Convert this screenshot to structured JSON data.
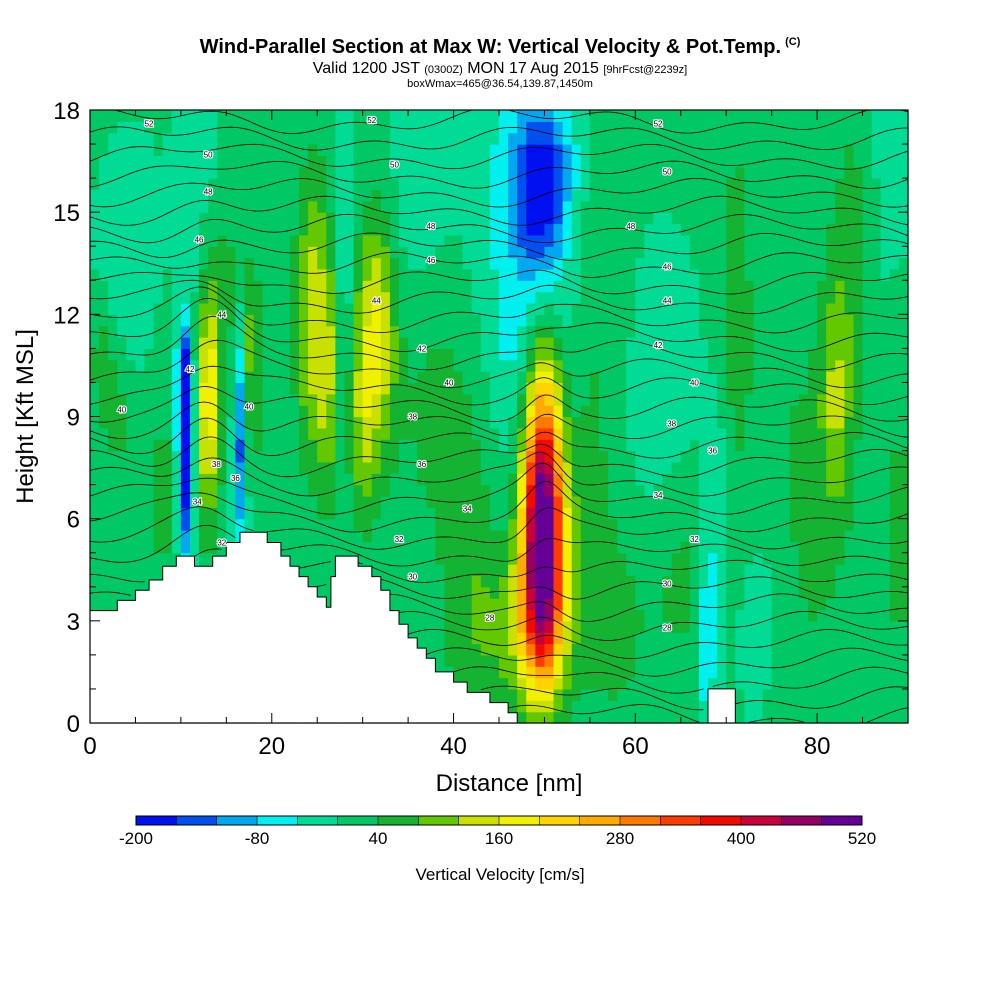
{
  "chart_data": {
    "type": "heatmap",
    "title": "Wind-Parallel Section at Max W: Vertical Velocity & Pot.Temp.",
    "title_mark": "(C)",
    "subtitle_parts": [
      "Valid 1200 JST",
      "(0300Z)",
      "MON 17 Aug 2015",
      "[9hrFcst@2239z]"
    ],
    "subtitle2": "boxWmax=465@36.54,139.87,1450m",
    "xlabel": "Distance [nm]",
    "ylabel": "Height [Kft MSL]",
    "xlim": [
      0,
      90
    ],
    "ylim": [
      0,
      18
    ],
    "xticks": [
      0,
      20,
      40,
      60,
      80
    ],
    "yticks": [
      0,
      3,
      6,
      9,
      12,
      15,
      18
    ],
    "colorbar": {
      "label": "Vertical Velocity [cm/s]",
      "tick_labels": [
        "-200",
        "-80",
        "40",
        "160",
        "280",
        "400",
        "520"
      ],
      "levels": [
        -200,
        -160,
        -120,
        -80,
        -40,
        0,
        40,
        80,
        120,
        160,
        200,
        240,
        280,
        320,
        360,
        400,
        440,
        480,
        520
      ],
      "colors": [
        "#0010f0",
        "#0050f0",
        "#00a8f0",
        "#00f0f0",
        "#00dc96",
        "#00c864",
        "#14b432",
        "#64c800",
        "#c8e100",
        "#f0f000",
        "#ffd200",
        "#ffaa00",
        "#ff7800",
        "#ff3c00",
        "#f00a00",
        "#c8003c",
        "#960064",
        "#640096"
      ]
    },
    "terrain": [
      [
        0,
        3.3
      ],
      [
        3,
        3.3
      ],
      [
        3,
        3.6
      ],
      [
        5,
        3.6
      ],
      [
        5,
        3.9
      ],
      [
        6.5,
        3.9
      ],
      [
        6.5,
        4.2
      ],
      [
        8,
        4.2
      ],
      [
        8,
        4.6
      ],
      [
        9.5,
        4.6
      ],
      [
        9.5,
        4.9
      ],
      [
        11.5,
        4.9
      ],
      [
        11.5,
        4.6
      ],
      [
        13.5,
        4.6
      ],
      [
        13.5,
        4.9
      ],
      [
        15,
        4.9
      ],
      [
        15,
        5.3
      ],
      [
        16.5,
        5.3
      ],
      [
        16.5,
        5.6
      ],
      [
        19.5,
        5.6
      ],
      [
        19.5,
        5.3
      ],
      [
        21,
        5.3
      ],
      [
        21,
        4.9
      ],
      [
        22,
        4.9
      ],
      [
        22,
        4.6
      ],
      [
        23,
        4.6
      ],
      [
        23,
        4.3
      ],
      [
        24,
        4.3
      ],
      [
        24,
        4.0
      ],
      [
        25,
        4.0
      ],
      [
        25,
        3.7
      ],
      [
        26,
        3.7
      ],
      [
        26,
        3.4
      ],
      [
        26.5,
        3.4
      ],
      [
        26.5,
        4.3
      ],
      [
        27,
        4.3
      ],
      [
        27,
        4.9
      ],
      [
        29.5,
        4.9
      ],
      [
        29.5,
        4.6
      ],
      [
        31,
        4.6
      ],
      [
        31,
        4.3
      ],
      [
        32,
        4.3
      ],
      [
        32,
        3.9
      ],
      [
        33,
        3.9
      ],
      [
        33,
        3.3
      ],
      [
        34,
        3.3
      ],
      [
        34,
        2.9
      ],
      [
        35,
        2.9
      ],
      [
        35,
        2.5
      ],
      [
        36,
        2.5
      ],
      [
        36,
        2.2
      ],
      [
        37,
        2.2
      ],
      [
        37,
        1.9
      ],
      [
        38,
        1.9
      ],
      [
        38,
        1.5
      ],
      [
        40,
        1.5
      ],
      [
        40,
        1.2
      ],
      [
        41.5,
        1.2
      ],
      [
        41.5,
        0.9
      ],
      [
        44,
        0.9
      ],
      [
        44,
        0.6
      ],
      [
        46,
        0.6
      ],
      [
        46,
        0.3
      ],
      [
        47,
        0.3
      ],
      [
        47,
        0
      ],
      [
        68,
        0
      ],
      [
        68,
        1.0
      ],
      [
        71,
        1.0
      ],
      [
        71,
        0
      ],
      [
        90,
        0
      ]
    ],
    "w_features": [
      {
        "x": 49.8,
        "z": 6.0,
        "sx": 1.6,
        "sz": 2.8,
        "w": 560
      },
      {
        "x": 49.5,
        "z": 3.0,
        "sx": 2.2,
        "sz": 1.8,
        "w": 150
      },
      {
        "x": 50.3,
        "z": 10.5,
        "sx": 1.5,
        "sz": 1.5,
        "w": 70
      },
      {
        "x": 49.5,
        "z": 15.5,
        "sx": 1.8,
        "sz": 1.4,
        "w": -140
      },
      {
        "x": 48.5,
        "z": 12.5,
        "sx": 3.8,
        "sz": 4.5,
        "w": -85
      },
      {
        "x": 50.0,
        "z": 16.8,
        "sx": 3.5,
        "sz": 1.3,
        "w": -50
      },
      {
        "x": 10.5,
        "z": 8.0,
        "sx": 0.6,
        "sz": 2.2,
        "w": -230
      },
      {
        "x": 10.2,
        "z": 10.0,
        "sx": 0.5,
        "sz": 0.9,
        "w": -150
      },
      {
        "x": 16.5,
        "z": 8.5,
        "sx": 0.6,
        "sz": 2.4,
        "w": -150
      },
      {
        "x": 13.0,
        "z": 9.5,
        "sx": 0.8,
        "sz": 2.6,
        "w": 190
      },
      {
        "x": 17.8,
        "z": 10.5,
        "sx": 0.7,
        "sz": 2.2,
        "w": 110
      },
      {
        "x": 15.0,
        "z": 12.0,
        "sx": 1.2,
        "sz": 3.0,
        "w": 55
      },
      {
        "x": 24.5,
        "z": 12.0,
        "sx": 1.4,
        "sz": 3.0,
        "w": 130
      },
      {
        "x": 26.5,
        "z": 10.0,
        "sx": 1.2,
        "sz": 2.6,
        "w": 90
      },
      {
        "x": 31.5,
        "z": 11.5,
        "sx": 1.6,
        "sz": 2.6,
        "w": 170
      },
      {
        "x": 30.0,
        "z": 8.5,
        "sx": 1.0,
        "sz": 2.2,
        "w": 75
      },
      {
        "x": 28.0,
        "z": 13.5,
        "sx": 0.7,
        "sz": 2.5,
        "w": -75
      },
      {
        "x": 27.5,
        "z": 9.0,
        "sx": 0.5,
        "sz": 1.8,
        "w": -45
      },
      {
        "x": 3.0,
        "z": 9.2,
        "sx": 1.6,
        "sz": 1.5,
        "w": 55
      },
      {
        "x": 1.2,
        "z": 11.0,
        "sx": 1.0,
        "sz": 1.2,
        "w": 45
      },
      {
        "x": 4.5,
        "z": 12.8,
        "sx": 2.5,
        "sz": 2.5,
        "w": -35
      },
      {
        "x": 8.0,
        "z": 7.0,
        "sx": 1.2,
        "sz": 3.5,
        "w": 45
      },
      {
        "x": 12.0,
        "z": 15.5,
        "sx": 1.8,
        "sz": 2.5,
        "w": -30
      },
      {
        "x": 35.0,
        "z": 14.5,
        "sx": 3.0,
        "sz": 3.0,
        "w": -30
      },
      {
        "x": 37.5,
        "z": 9.5,
        "sx": 2.8,
        "sz": 2.8,
        "w": 48
      },
      {
        "x": 42.0,
        "z": 6.0,
        "sx": 2.5,
        "sz": 3.5,
        "w": 55
      },
      {
        "x": 44.5,
        "z": 2.5,
        "sx": 3.5,
        "sz": 1.8,
        "w": 55
      },
      {
        "x": 54.5,
        "z": 6.0,
        "sx": 1.6,
        "sz": 3.0,
        "w": 50
      },
      {
        "x": 56.0,
        "z": 13.0,
        "sx": 2.0,
        "sz": 4.0,
        "w": 45
      },
      {
        "x": 58.0,
        "z": 3.0,
        "sx": 2.5,
        "sz": 2.5,
        "w": 50
      },
      {
        "x": 63.0,
        "z": 9.0,
        "sx": 3.0,
        "sz": 3.0,
        "w": -35
      },
      {
        "x": 65.0,
        "z": 4.5,
        "sx": 2.5,
        "sz": 2.5,
        "w": 50
      },
      {
        "x": 67.8,
        "z": 2.5,
        "sx": 0.8,
        "sz": 1.8,
        "w": -90
      },
      {
        "x": 69.0,
        "z": 6.5,
        "sx": 0.9,
        "sz": 2.4,
        "w": -55
      },
      {
        "x": 71.0,
        "z": 12.0,
        "sx": 1.6,
        "sz": 5.5,
        "w": 48
      },
      {
        "x": 74.0,
        "z": 3.5,
        "sx": 2.8,
        "sz": 2.8,
        "w": -40
      },
      {
        "x": 78.0,
        "z": 5.5,
        "sx": 3.5,
        "sz": 5.0,
        "w": 50
      },
      {
        "x": 82.0,
        "z": 9.5,
        "sx": 1.2,
        "sz": 2.5,
        "w": 95
      },
      {
        "x": 84.0,
        "z": 14.0,
        "sx": 1.8,
        "sz": 4.0,
        "w": 50
      },
      {
        "x": 89.0,
        "z": 5.5,
        "sx": 1.0,
        "sz": 5.0,
        "w": 45
      },
      {
        "x": 88.0,
        "z": 16.0,
        "sx": 2.0,
        "sz": 3.0,
        "w": -30
      }
    ],
    "w_background": 5,
    "theta_labels": [
      {
        "t": "52",
        "x": 6.5,
        "z": 17.6
      },
      {
        "t": "50",
        "x": 13.0,
        "z": 16.7
      },
      {
        "t": "48",
        "x": 13.0,
        "z": 15.6
      },
      {
        "t": "46",
        "x": 12.0,
        "z": 14.2
      },
      {
        "t": "44",
        "x": 14.5,
        "z": 12.0
      },
      {
        "t": "42",
        "x": 11.0,
        "z": 10.4
      },
      {
        "t": "40",
        "x": 3.5,
        "z": 9.2
      },
      {
        "t": "40",
        "x": 17.5,
        "z": 9.3
      },
      {
        "t": "38",
        "x": 13.9,
        "z": 7.6
      },
      {
        "t": "36",
        "x": 16.0,
        "z": 7.2
      },
      {
        "t": "34",
        "x": 11.8,
        "z": 6.5
      },
      {
        "t": "32",
        "x": 14.5,
        "z": 5.3
      },
      {
        "t": "52",
        "x": 31.0,
        "z": 17.7
      },
      {
        "t": "50",
        "x": 33.5,
        "z": 16.4
      },
      {
        "t": "48",
        "x": 37.5,
        "z": 14.6
      },
      {
        "t": "46",
        "x": 37.5,
        "z": 13.6
      },
      {
        "t": "44",
        "x": 31.5,
        "z": 12.4
      },
      {
        "t": "42",
        "x": 36.5,
        "z": 11.0
      },
      {
        "t": "40",
        "x": 39.5,
        "z": 10.0
      },
      {
        "t": "38",
        "x": 35.5,
        "z": 9.0
      },
      {
        "t": "36",
        "x": 36.5,
        "z": 7.6
      },
      {
        "t": "34",
        "x": 41.5,
        "z": 6.3
      },
      {
        "t": "32",
        "x": 34.0,
        "z": 5.4
      },
      {
        "t": "30",
        "x": 35.5,
        "z": 4.3
      },
      {
        "t": "28",
        "x": 44.0,
        "z": 3.1
      },
      {
        "t": "52",
        "x": 62.5,
        "z": 17.6
      },
      {
        "t": "50",
        "x": 63.5,
        "z": 16.2
      },
      {
        "t": "48",
        "x": 59.5,
        "z": 14.6
      },
      {
        "t": "46",
        "x": 63.5,
        "z": 13.4
      },
      {
        "t": "44",
        "x": 63.5,
        "z": 12.4
      },
      {
        "t": "42",
        "x": 62.5,
        "z": 11.1
      },
      {
        "t": "40",
        "x": 66.5,
        "z": 10.0
      },
      {
        "t": "38",
        "x": 64.0,
        "z": 8.8
      },
      {
        "t": "36",
        "x": 68.5,
        "z": 8.0
      },
      {
        "t": "34",
        "x": 62.5,
        "z": 6.7
      },
      {
        "t": "32",
        "x": 66.5,
        "z": 5.4
      },
      {
        "t": "30",
        "x": 63.5,
        "z": 4.1
      },
      {
        "t": "28",
        "x": 63.5,
        "z": 2.8
      }
    ]
  }
}
